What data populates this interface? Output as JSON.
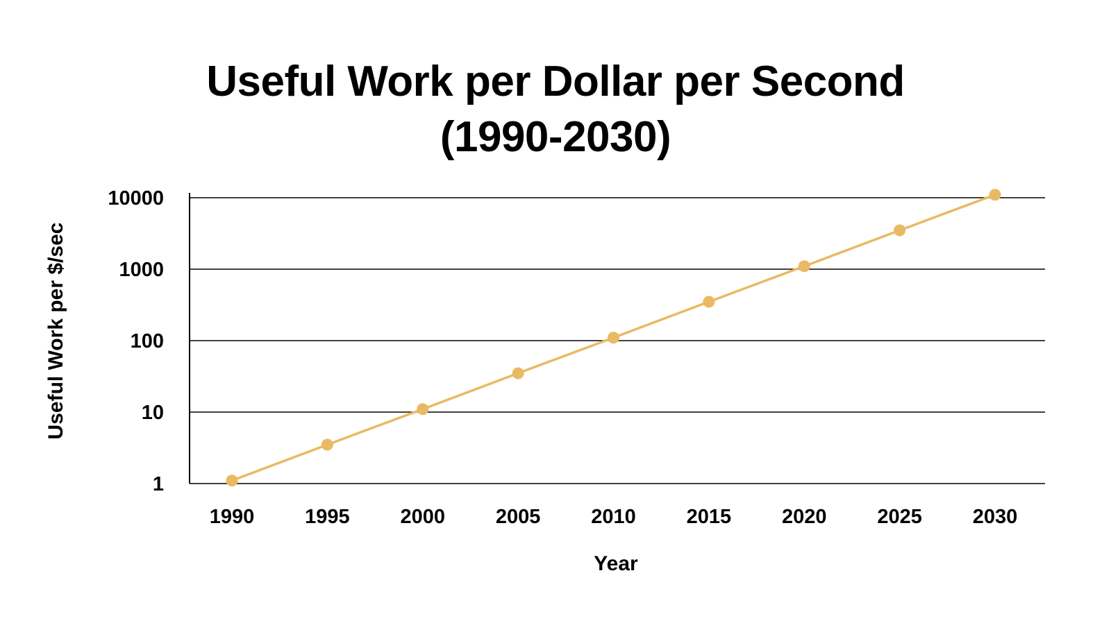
{
  "chart_data": {
    "type": "line",
    "title": "Useful Work per Dollar per Second\n(1990-2030)",
    "xlabel": "Year",
    "ylabel": "Useful Work per $/sec",
    "yscale": "log",
    "ylim": [
      1,
      10000
    ],
    "grid": "horizontal",
    "x_ticks": [
      "1990",
      "1995",
      "2000",
      "2005",
      "2010",
      "2015",
      "2020",
      "2025",
      "2030"
    ],
    "y_ticks": [
      "1",
      "10",
      "100",
      "1000",
      "10000"
    ],
    "series": [
      {
        "color": "#E9BA63",
        "x": [
          1990,
          1995,
          2000,
          2005,
          2010,
          2015,
          2020,
          2025,
          2030
        ],
        "values": [
          1.1,
          3.5,
          11,
          35,
          110,
          350,
          1100,
          3500,
          11000
        ]
      }
    ]
  }
}
